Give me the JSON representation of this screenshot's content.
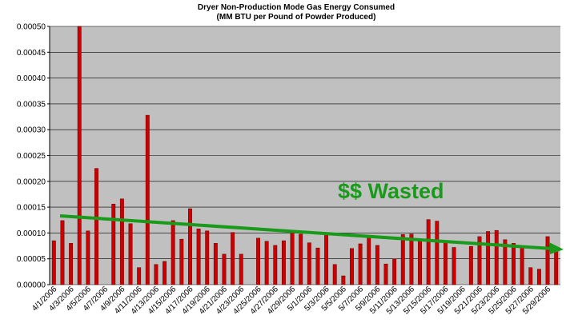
{
  "chart_data": {
    "type": "bar",
    "title": "Dryer Non-Production Mode Gas Energy Consumed",
    "subtitle": "(MM BTU per Pound of Powder Produced)",
    "annotation": "$$ Wasted",
    "categories": [
      "4/1/2006",
      null,
      "4/3/2006",
      null,
      "4/5/2006",
      null,
      "4/7/2006",
      null,
      "4/9/2006",
      null,
      "4/11/2006",
      null,
      "4/13/2006",
      null,
      "4/15/2006",
      null,
      "4/17/2006",
      null,
      "4/19/2006",
      null,
      "4/21/2006",
      null,
      "4/23/2006",
      null,
      "4/25/2006",
      null,
      "4/27/2006",
      null,
      "4/29/2006",
      null,
      "5/1/2006",
      null,
      "5/3/2006",
      null,
      "5/5/2006",
      null,
      "5/7/2006",
      null,
      "5/9/2006",
      null,
      "5/11/2006",
      null,
      "5/13/2006",
      null,
      "5/15/2006",
      null,
      "5/17/2006",
      null,
      "5/19/2006",
      null,
      "5/21/2006",
      null,
      "5/23/2006",
      null,
      "5/25/2006",
      null,
      "5/27/2006",
      null,
      "5/29/2006",
      null
    ],
    "values": [
      8.5e-05,
      0.000124,
      8e-05,
      0.0005,
      0.000104,
      0.000225,
      0,
      0.000156,
      0.000166,
      0.000118,
      3.3e-05,
      0.000328,
      3.9e-05,
      4.5e-05,
      0.000124,
      8.8e-05,
      0.000147,
      0.000108,
      0.000104,
      8e-05,
      5.9e-05,
      0.000101,
      5.9e-05,
      0,
      9e-05,
      8.4e-05,
      7.6e-05,
      8.5e-05,
      0.0001,
      9.8e-05,
      8.1e-05,
      7.1e-05,
      9.8e-05,
      3.9e-05,
      1.7e-05,
      7e-05,
      7.9e-05,
      9.3e-05,
      7.6e-05,
      4e-05,
      5e-05,
      9.7e-05,
      9.8e-05,
      8.7e-05,
      0.000126,
      0.000123,
      8.5e-05,
      7.2e-05,
      0,
      7.4e-05,
      9.3e-05,
      0.000103,
      0.000105,
      8.7e-05,
      8e-05,
      7.4e-05,
      3.3e-05,
      3e-05,
      9.3e-05,
      6.8e-05
    ],
    "color": "#cc0000",
    "ylim": [
      0,
      0.0005
    ],
    "yticks": [
      {
        "value": 0,
        "label": "0.00000"
      },
      {
        "value": 5e-05,
        "label": "0.00005"
      },
      {
        "value": 0.0001,
        "label": "0.00010"
      },
      {
        "value": 0.00015,
        "label": "0.00015"
      },
      {
        "value": 0.0002,
        "label": "0.00020"
      },
      {
        "value": 0.00025,
        "label": "0.00025"
      },
      {
        "value": 0.0003,
        "label": "0.00030"
      },
      {
        "value": 0.00035,
        "label": "0.00035"
      },
      {
        "value": 0.0004,
        "label": "0.00040"
      },
      {
        "value": 0.00045,
        "label": "0.00045"
      },
      {
        "value": 0.0005,
        "label": "0.00050"
      }
    ],
    "grid": true
  }
}
